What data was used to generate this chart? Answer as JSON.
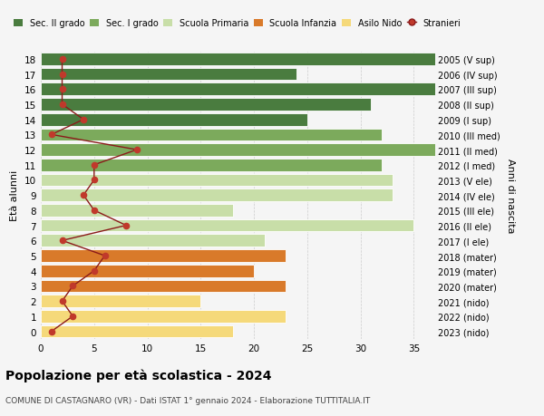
{
  "ages": [
    18,
    17,
    16,
    15,
    14,
    13,
    12,
    11,
    10,
    9,
    8,
    7,
    6,
    5,
    4,
    3,
    2,
    1,
    0
  ],
  "years_labels": [
    "2005 (V sup)",
    "2006 (IV sup)",
    "2007 (III sup)",
    "2008 (II sup)",
    "2009 (I sup)",
    "2010 (III med)",
    "2011 (II med)",
    "2012 (I med)",
    "2013 (V ele)",
    "2014 (IV ele)",
    "2015 (III ele)",
    "2016 (II ele)",
    "2017 (I ele)",
    "2018 (mater)",
    "2019 (mater)",
    "2020 (mater)",
    "2021 (nido)",
    "2022 (nido)",
    "2023 (nido)"
  ],
  "bar_values": [
    37,
    24,
    37,
    31,
    25,
    32,
    37,
    32,
    33,
    33,
    18,
    35,
    21,
    23,
    20,
    23,
    15,
    23,
    18
  ],
  "bar_colors": [
    "#4a7c3f",
    "#4a7c3f",
    "#4a7c3f",
    "#4a7c3f",
    "#4a7c3f",
    "#7caa5c",
    "#7caa5c",
    "#7caa5c",
    "#c8dea8",
    "#c8dea8",
    "#c8dea8",
    "#c8dea8",
    "#c8dea8",
    "#d97a2a",
    "#d97a2a",
    "#d97a2a",
    "#f5d97a",
    "#f5d97a",
    "#f5d97a"
  ],
  "stranieri_values": [
    2,
    2,
    2,
    2,
    4,
    1,
    9,
    5,
    5,
    4,
    5,
    8,
    2,
    6,
    5,
    3,
    2,
    3,
    1
  ],
  "title": "Popolazione per età scolastica - 2024",
  "subtitle": "COMUNE DI CASTAGNARO (VR) - Dati ISTAT 1° gennaio 2024 - Elaborazione TUTTITALIA.IT",
  "ylabel_left": "Età alunni",
  "ylabel_right": "Anni di nascita",
  "xlim": [
    0,
    37
  ],
  "xticks": [
    0,
    5,
    10,
    15,
    20,
    25,
    30,
    35
  ],
  "legend_labels": [
    "Sec. II grado",
    "Sec. I grado",
    "Scuola Primaria",
    "Scuola Infanzia",
    "Asilo Nido",
    "Stranieri"
  ],
  "legend_colors": [
    "#4a7c3f",
    "#7caa5c",
    "#c8dea8",
    "#d97a2a",
    "#f5d97a",
    "#b22222"
  ],
  "bg_color": "#f5f5f5",
  "bar_height": 0.82,
  "stranieri_line_color": "#8b1a1a",
  "stranieri_dot_color": "#c0392b"
}
